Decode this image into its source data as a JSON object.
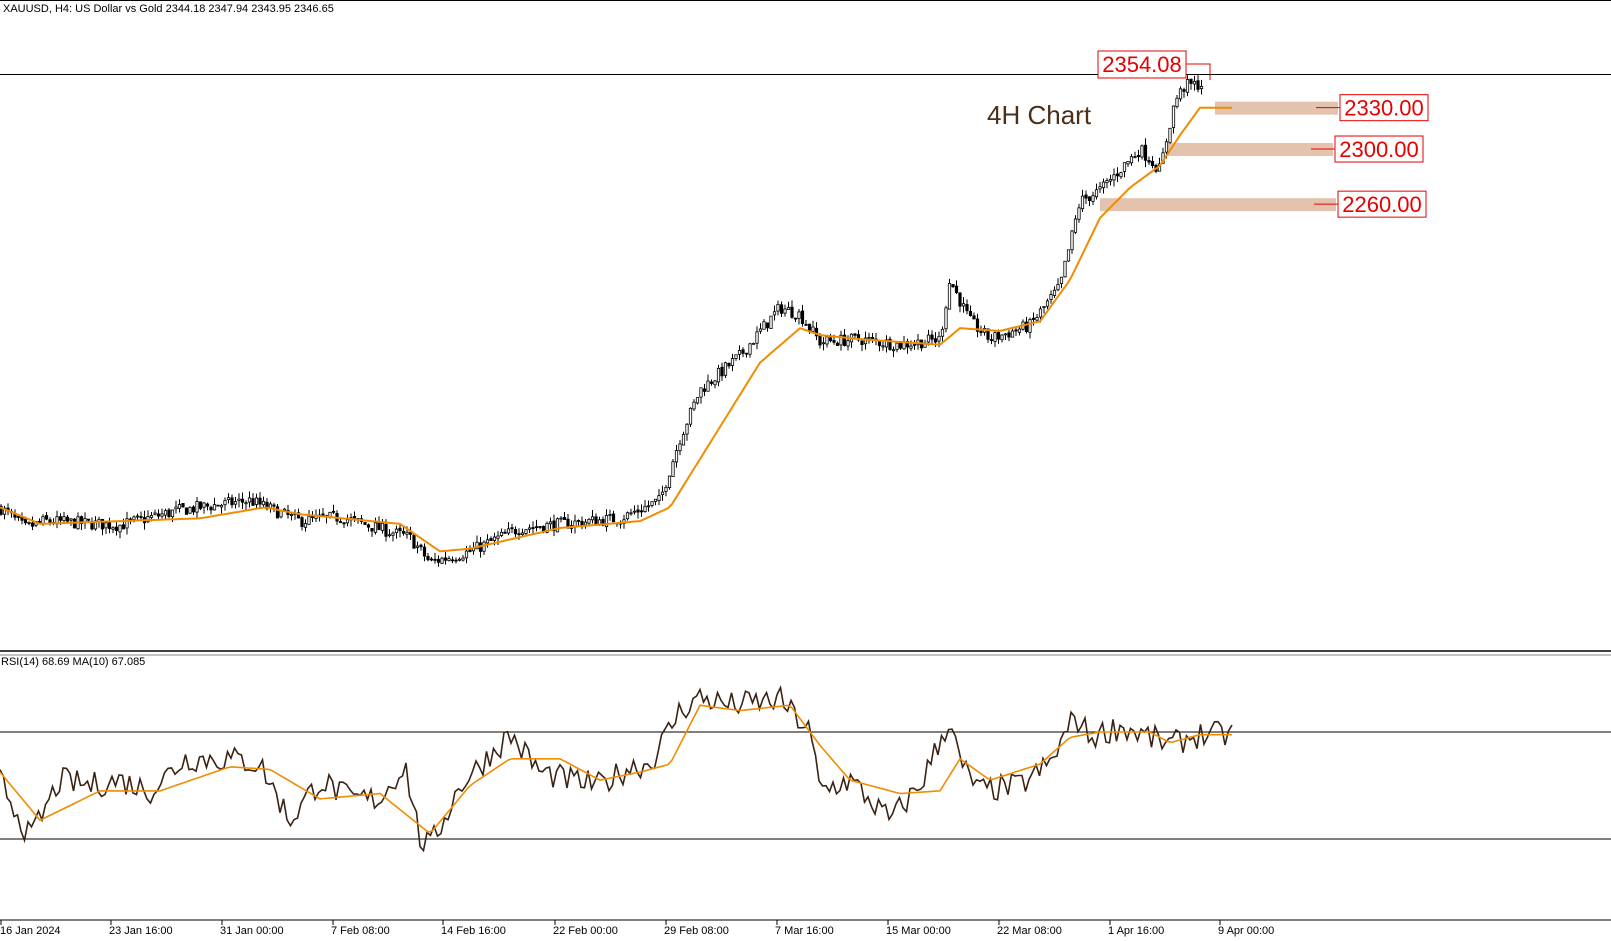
{
  "header": {
    "symbol_info": "XAUUSD, H4:  US Dollar vs Gold  2344.18 2347.94 2343.95 2346.65"
  },
  "annotation": {
    "chart_label": "4H Chart"
  },
  "levels": {
    "high_label": "2354.08",
    "zones": [
      {
        "label": "2330.00",
        "value": 2330
      },
      {
        "label": "2300.00",
        "value": 2300
      },
      {
        "label": "2260.00",
        "value": 2260
      }
    ],
    "zone_color": "#deb9a0",
    "label_color": "#e60000"
  },
  "rsi_panel": {
    "label": "RSI(14) 68.69 MA(10) 67.085",
    "upper": 70,
    "lower": 30
  },
  "colors": {
    "candle": "#000000",
    "ma": "#f08c00",
    "rsi": "#3b2314",
    "rsi_ma": "#f08c00"
  },
  "chart_data": {
    "type": "line",
    "description_free": true,
    "x_ticks": [
      "16 Jan 2024",
      "23 Jan 16:00",
      "31 Jan 00:00",
      "7 Feb 08:00",
      "14 Feb 16:00",
      "22 Feb 00:00",
      "29 Feb 08:00",
      "7 Mar 16:00",
      "15 Mar 00:00",
      "22 Mar 08:00",
      "1 Apr 16:00",
      "9 Apr 00:00"
    ],
    "price_anchors": {
      "x": [
        0,
        25,
        45,
        120,
        180,
        250,
        300,
        340,
        410,
        430,
        470,
        520,
        620,
        660,
        680,
        700,
        740,
        780,
        800,
        820,
        860,
        900,
        940,
        950,
        970,
        990,
        1030,
        1060,
        1080,
        1100,
        1140,
        1160,
        1175,
        1185,
        1200
      ],
      "y": [
        2040,
        2025,
        2030,
        2027,
        2038,
        2045,
        2030,
        2033,
        2018,
        2000,
        2008,
        2025,
        2032,
        2045,
        2090,
        2125,
        2150,
        2185,
        2180,
        2160,
        2162,
        2158,
        2162,
        2205,
        2175,
        2162,
        2172,
        2200,
        2262,
        2270,
        2300,
        2285,
        2335,
        2346,
        2347
      ]
    },
    "ma_anchors": {
      "x": [
        0,
        40,
        120,
        200,
        265,
        300,
        400,
        440,
        470,
        560,
        640,
        670,
        700,
        760,
        800,
        820,
        860,
        900,
        940,
        960,
        1000,
        1040,
        1070,
        1100,
        1130,
        1160,
        1180,
        1200
      ],
      "y": [
        2040,
        2028,
        2030,
        2032,
        2040,
        2035,
        2028,
        2008,
        2010,
        2025,
        2030,
        2040,
        2075,
        2145,
        2170,
        2165,
        2162,
        2160,
        2158,
        2170,
        2168,
        2175,
        2205,
        2250,
        2272,
        2288,
        2310,
        2330
      ]
    },
    "rsi_anchors": {
      "x": [
        0,
        20,
        30,
        60,
        90,
        120,
        150,
        185,
        230,
        260,
        290,
        320,
        350,
        380,
        405,
        420,
        430,
        460,
        510,
        540,
        570,
        600,
        630,
        650,
        680,
        700,
        730,
        780,
        810,
        820,
        850,
        890,
        920,
        950,
        960,
        980,
        1020,
        1050,
        1075,
        1090,
        1120,
        1150,
        1170,
        1190,
        1200
      ],
      "y": [
        52,
        38,
        30,
        52,
        50,
        52,
        48,
        60,
        60,
        58,
        37,
        52,
        45,
        45,
        58,
        30,
        27,
        50,
        69,
        55,
        52,
        50,
        57,
        58,
        78,
        83,
        80,
        82,
        70,
        48,
        52,
        37,
        50,
        75,
        58,
        48,
        50,
        58,
        76,
        68,
        72,
        68,
        65,
        68,
        69
      ]
    },
    "rsi_ma_anchors": {
      "x": [
        0,
        40,
        100,
        160,
        230,
        270,
        320,
        380,
        430,
        470,
        510,
        560,
        600,
        640,
        670,
        700,
        740,
        790,
        820,
        850,
        900,
        940,
        960,
        990,
        1040,
        1070,
        1100,
        1150,
        1170,
        1200
      ],
      "y": [
        55,
        37,
        48,
        48,
        57,
        56,
        45,
        47,
        32,
        50,
        60,
        60,
        52,
        55,
        58,
        80,
        78,
        80,
        65,
        52,
        47,
        48,
        60,
        52,
        58,
        68,
        70,
        70,
        66,
        69
      ]
    }
  }
}
